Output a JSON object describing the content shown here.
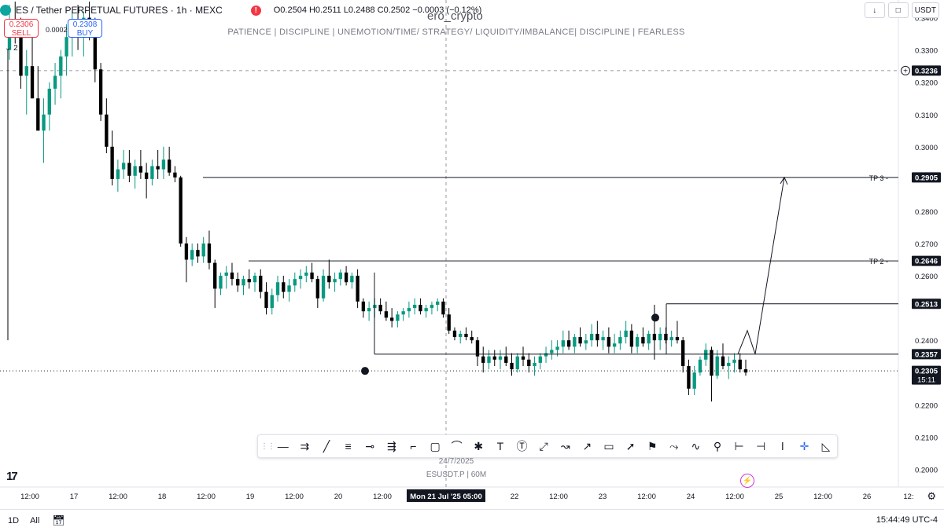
{
  "symbol_bar": {
    "symbol": "ES / Tether PERPETUAL FUTURES · 1h · MEXC",
    "alert_icon": "!",
    "ohlc": "O0.2504 H0.2511 L0.2488 C0.2502 −0.0003 (−0.12%)"
  },
  "watermark": "ero_crypto",
  "banner": "PATIENCE   |   DISCIPLINE   |   UNEMOTION/TIME/ STRATEGY/ LIQUIDITY/IMBALANCE|   DISCIPLINE   |   FEARLESS",
  "trade": {
    "sell_price": "0.2306",
    "sell_label": "SELL",
    "buy_price": "0.2308",
    "buy_label": "BUY",
    "spread": "0.0002",
    "collapse": "⌄ 2"
  },
  "top_right": {
    "currency": "USDT",
    "arrow_icon": "↓",
    "box_icon": "□"
  },
  "midlabels": {
    "date": "24/7/2025",
    "interval": "ESUSDT.P  |  60M"
  },
  "bottom_bar": {
    "range": "1D",
    "all": "All",
    "calendar_icon": "calendar-icon",
    "clock": "15:44:49 UTC-4"
  },
  "tools": [
    "grip",
    "—",
    "⇉",
    "╱",
    "≡",
    "⊸",
    "⇶",
    "⌐",
    "▢",
    "⌒",
    "✱",
    "T",
    "Ⓣ",
    "⤢",
    "↝",
    "↗",
    "▭",
    "➚",
    "⚑",
    "⤳",
    "∿",
    "⚲",
    "⊢",
    "⊣",
    "ǀ",
    "✛",
    "◺"
  ],
  "colors": {
    "up": "#089981",
    "down": "#000000",
    "bg": "#ffffff",
    "plot": "#ffffff"
  },
  "chart_data": {
    "type": "candlestick",
    "title": "ES / Tether PERPETUAL FUTURES · 1h · MEXC",
    "y_axis_ticks": [
      0.34,
      0.33,
      0.32,
      0.31,
      0.3,
      0.28,
      0.27,
      0.26,
      0.24,
      0.22,
      0.21,
      0.2
    ],
    "ylim": [
      0.1945,
      0.3455
    ],
    "x_axis_ticks": [
      "12:00",
      "17",
      "12:00",
      "18",
      "12:00",
      "19",
      "12:00",
      "20",
      "12:00",
      "Mon 21 Jul '25  05:00",
      "22",
      "12:00",
      "23",
      "12:00",
      "24",
      "12:00",
      "25",
      "12:00",
      "26",
      "12:"
    ],
    "crosshair_x_label": "Mon 21 Jul '25  05:00",
    "levels": [
      {
        "label": "TP 3",
        "price": 0.2905
      },
      {
        "label": "TP 2",
        "price": 0.2646
      },
      {
        "label": "",
        "price": 0.2513
      },
      {
        "label": "",
        "price": 0.2357
      }
    ],
    "price_labels": [
      {
        "price": "0.3236"
      },
      {
        "price": "0.2905"
      },
      {
        "price": "0.2646"
      },
      {
        "price": "0.2513"
      },
      {
        "price": "0.2357"
      },
      {
        "price": "0.2305",
        "countdown": "15:11"
      }
    ],
    "projection": [
      [
        0.2357,
        0.243
      ],
      [
        0.243,
        0.2357
      ],
      [
        0.2357,
        0.2905
      ]
    ],
    "candles": [
      [
        0.33,
        0.344,
        0.327,
        0.339
      ],
      [
        0.339,
        0.345,
        0.332,
        0.335
      ],
      [
        0.335,
        0.34,
        0.318,
        0.322
      ],
      [
        0.322,
        0.33,
        0.31,
        0.325
      ],
      [
        0.325,
        0.335,
        0.315,
        0.315
      ],
      [
        0.315,
        0.325,
        0.305,
        0.305
      ],
      [
        0.305,
        0.315,
        0.295,
        0.31
      ],
      [
        0.31,
        0.32,
        0.305,
        0.318
      ],
      [
        0.318,
        0.326,
        0.313,
        0.322
      ],
      [
        0.322,
        0.33,
        0.315,
        0.328
      ],
      [
        0.328,
        0.338,
        0.322,
        0.334
      ],
      [
        0.334,
        0.342,
        0.328,
        0.338
      ],
      [
        0.338,
        0.344,
        0.33,
        0.335
      ],
      [
        0.335,
        0.342,
        0.328,
        0.34
      ],
      [
        0.34,
        0.345,
        0.333,
        0.336
      ],
      [
        0.336,
        0.34,
        0.32,
        0.324
      ],
      [
        0.324,
        0.326,
        0.308,
        0.31
      ],
      [
        0.31,
        0.315,
        0.298,
        0.3
      ],
      [
        0.3,
        0.305,
        0.288,
        0.29
      ],
      [
        0.29,
        0.296,
        0.286,
        0.293
      ],
      [
        0.293,
        0.299,
        0.29,
        0.295
      ],
      [
        0.295,
        0.299,
        0.289,
        0.291
      ],
      [
        0.291,
        0.296,
        0.287,
        0.294
      ],
      [
        0.294,
        0.299,
        0.29,
        0.292
      ],
      [
        0.292,
        0.295,
        0.284,
        0.29
      ],
      [
        0.29,
        0.296,
        0.288,
        0.294
      ],
      [
        0.294,
        0.299,
        0.29,
        0.293
      ],
      [
        0.293,
        0.3,
        0.29,
        0.296
      ],
      [
        0.296,
        0.3,
        0.291,
        0.292
      ],
      [
        0.292,
        0.294,
        0.289,
        0.2905
      ],
      [
        0.2905,
        0.291,
        0.269,
        0.27
      ],
      [
        0.27,
        0.272,
        0.258,
        0.265
      ],
      [
        0.265,
        0.27,
        0.263,
        0.268
      ],
      [
        0.268,
        0.27,
        0.264,
        0.266
      ],
      [
        0.266,
        0.272,
        0.264,
        0.27
      ],
      [
        0.27,
        0.274,
        0.262,
        0.264
      ],
      [
        0.264,
        0.265,
        0.25,
        0.256
      ],
      [
        0.256,
        0.261,
        0.254,
        0.26
      ],
      [
        0.26,
        0.263,
        0.256,
        0.261
      ],
      [
        0.261,
        0.264,
        0.257,
        0.259
      ],
      [
        0.259,
        0.261,
        0.255,
        0.257
      ],
      [
        0.257,
        0.26,
        0.254,
        0.259
      ],
      [
        0.259,
        0.262,
        0.256,
        0.258
      ],
      [
        0.258,
        0.261,
        0.255,
        0.26
      ],
      [
        0.26,
        0.262,
        0.253,
        0.255
      ],
      [
        0.255,
        0.258,
        0.248,
        0.25
      ],
      [
        0.25,
        0.256,
        0.248,
        0.254
      ],
      [
        0.254,
        0.26,
        0.252,
        0.258
      ],
      [
        0.258,
        0.26,
        0.253,
        0.255
      ],
      [
        0.255,
        0.259,
        0.252,
        0.257
      ],
      [
        0.257,
        0.261,
        0.255,
        0.259
      ],
      [
        0.259,
        0.262,
        0.256,
        0.26
      ],
      [
        0.26,
        0.263,
        0.258,
        0.261
      ],
      [
        0.261,
        0.264,
        0.258,
        0.259
      ],
      [
        0.259,
        0.26,
        0.25,
        0.253
      ],
      [
        0.253,
        0.262,
        0.252,
        0.26
      ],
      [
        0.26,
        0.265,
        0.256,
        0.258
      ],
      [
        0.258,
        0.261,
        0.255,
        0.259
      ],
      [
        0.259,
        0.262,
        0.257,
        0.261
      ],
      [
        0.261,
        0.263,
        0.257,
        0.258
      ],
      [
        0.258,
        0.261,
        0.256,
        0.26
      ],
      [
        0.26,
        0.262,
        0.25,
        0.252
      ],
      [
        0.252,
        0.253,
        0.247,
        0.249
      ],
      [
        0.249,
        0.252,
        0.246,
        0.25
      ],
      [
        0.25,
        0.253,
        0.247,
        0.251
      ],
      [
        0.251,
        0.253,
        0.248,
        0.249
      ],
      [
        0.249,
        0.252,
        0.246,
        0.247
      ],
      [
        0.247,
        0.25,
        0.244,
        0.246
      ],
      [
        0.246,
        0.249,
        0.244,
        0.248
      ],
      [
        0.248,
        0.25,
        0.246,
        0.249
      ],
      [
        0.249,
        0.252,
        0.247,
        0.25
      ],
      [
        0.25,
        0.253,
        0.248,
        0.251
      ],
      [
        0.251,
        0.253,
        0.248,
        0.249
      ],
      [
        0.249,
        0.251,
        0.247,
        0.25
      ],
      [
        0.25,
        0.252,
        0.248,
        0.251
      ],
      [
        0.251,
        0.253,
        0.249,
        0.252
      ],
      [
        0.252,
        0.253,
        0.247,
        0.248
      ],
      [
        0.248,
        0.25,
        0.242,
        0.243
      ],
      [
        0.243,
        0.244,
        0.24,
        0.241
      ],
      [
        0.241,
        0.243,
        0.239,
        0.242
      ],
      [
        0.242,
        0.244,
        0.24,
        0.241
      ],
      [
        0.241,
        0.243,
        0.239,
        0.24
      ],
      [
        0.24,
        0.241,
        0.232,
        0.235
      ],
      [
        0.235,
        0.238,
        0.23,
        0.233
      ],
      [
        0.233,
        0.237,
        0.231,
        0.235
      ],
      [
        0.235,
        0.237,
        0.232,
        0.234
      ],
      [
        0.234,
        0.237,
        0.231,
        0.235
      ],
      [
        0.235,
        0.238,
        0.232,
        0.233
      ],
      [
        0.233,
        0.236,
        0.229,
        0.231
      ],
      [
        0.231,
        0.236,
        0.23,
        0.235
      ],
      [
        0.235,
        0.238,
        0.232,
        0.234
      ],
      [
        0.234,
        0.236,
        0.23,
        0.232
      ],
      [
        0.232,
        0.235,
        0.229,
        0.233
      ],
      [
        0.233,
        0.236,
        0.231,
        0.235
      ],
      [
        0.235,
        0.238,
        0.233,
        0.236
      ],
      [
        0.236,
        0.24,
        0.234,
        0.237
      ],
      [
        0.237,
        0.24,
        0.235,
        0.238
      ],
      [
        0.238,
        0.243,
        0.236,
        0.24
      ],
      [
        0.24,
        0.243,
        0.237,
        0.238
      ],
      [
        0.238,
        0.242,
        0.236,
        0.241
      ],
      [
        0.241,
        0.244,
        0.238,
        0.239
      ],
      [
        0.239,
        0.242,
        0.237,
        0.24
      ],
      [
        0.24,
        0.245,
        0.238,
        0.242
      ],
      [
        0.242,
        0.246,
        0.238,
        0.24
      ],
      [
        0.24,
        0.243,
        0.237,
        0.241
      ],
      [
        0.241,
        0.244,
        0.236,
        0.238
      ],
      [
        0.238,
        0.242,
        0.236,
        0.239
      ],
      [
        0.239,
        0.243,
        0.237,
        0.241
      ],
      [
        0.241,
        0.246,
        0.239,
        0.243
      ],
      [
        0.243,
        0.245,
        0.236,
        0.238
      ],
      [
        0.238,
        0.242,
        0.236,
        0.241
      ],
      [
        0.241,
        0.244,
        0.238,
        0.239
      ],
      [
        0.239,
        0.243,
        0.237,
        0.242
      ],
      [
        0.242,
        0.251,
        0.234,
        0.24
      ],
      [
        0.24,
        0.244,
        0.237,
        0.242
      ],
      [
        0.242,
        0.244,
        0.239,
        0.24
      ],
      [
        0.24,
        0.243,
        0.238,
        0.241
      ],
      [
        0.241,
        0.246,
        0.239,
        0.24
      ],
      [
        0.24,
        0.241,
        0.23,
        0.232
      ],
      [
        0.232,
        0.234,
        0.223,
        0.225
      ],
      [
        0.225,
        0.232,
        0.223,
        0.23
      ],
      [
        0.23,
        0.235,
        0.229,
        0.234
      ],
      [
        0.234,
        0.239,
        0.232,
        0.237
      ],
      [
        0.237,
        0.238,
        0.221,
        0.229
      ],
      [
        0.229,
        0.237,
        0.228,
        0.235
      ],
      [
        0.235,
        0.239,
        0.231,
        0.232
      ],
      [
        0.232,
        0.235,
        0.228,
        0.233
      ],
      [
        0.233,
        0.236,
        0.23,
        0.234
      ],
      [
        0.234,
        0.236,
        0.23,
        0.231
      ],
      [
        0.231,
        0.234,
        0.229,
        0.23
      ]
    ]
  }
}
